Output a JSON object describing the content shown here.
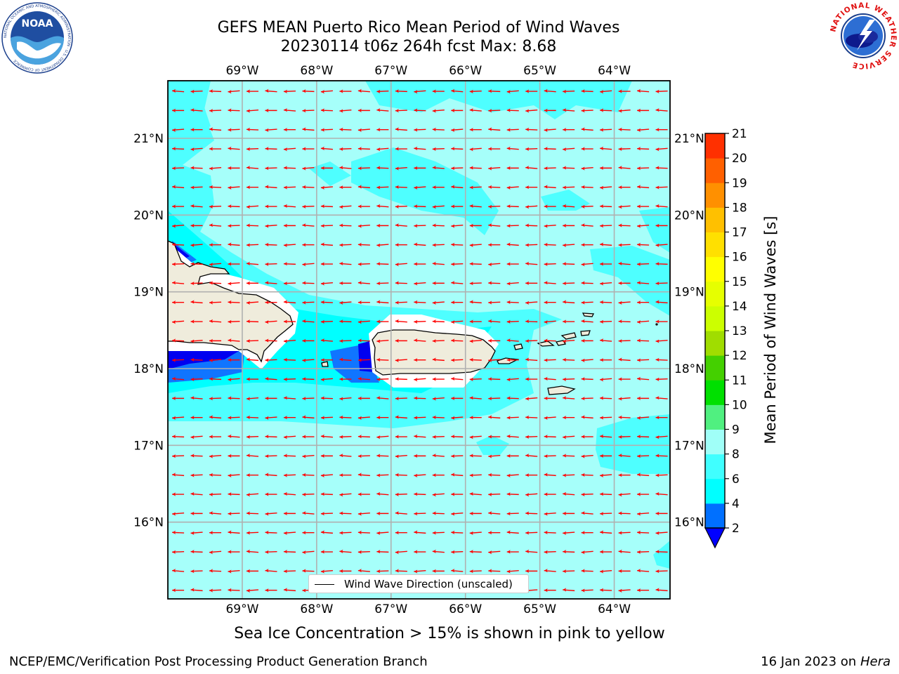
{
  "title": {
    "line1": "GEFS MEAN Puerto Rico Mean Period of Wind Waves",
    "line2": "20230114 t06z 264h fcst   Max: 8.68"
  },
  "logos": {
    "left": "NOAA",
    "left_ring": "NATIONAL OCEANIC AND ATMOSPHERIC ADMINISTRATION · U.S. DEPARTMENT OF COMMERCE",
    "right_ring": "NATIONAL WEATHER SERVICE"
  },
  "map": {
    "region": "Puerto Rico",
    "lon_range": [
      -70,
      -63.25
    ],
    "lat_range": [
      15,
      21.75
    ],
    "lon_ticks": [
      "69°W",
      "68°W",
      "67°W",
      "66°W",
      "65°W",
      "64°W"
    ],
    "lat_ticks": [
      "21°N",
      "20°N",
      "19°N",
      "18°N",
      "17°N",
      "16°N"
    ],
    "land_color": "#efecdc",
    "arrow_color": "#ff0000",
    "grid": true,
    "arrow_direction": "westward"
  },
  "colorbar": {
    "label": "Mean Period of Wind Waves [s]",
    "ticks": [
      "2",
      "4",
      "6",
      "8",
      "9",
      "10",
      "11",
      "12",
      "13",
      "14",
      "15",
      "16",
      "17",
      "18",
      "19",
      "20",
      "21"
    ],
    "colors": [
      "#0070ff",
      "#00ffff",
      "#40ffff",
      "#a0fff8",
      "#50f080",
      "#00e000",
      "#44d000",
      "#a0dd00",
      "#ccff00",
      "#e6ff00",
      "#ffff00",
      "#ffe000",
      "#ffc000",
      "#ff9000",
      "#ff6000",
      "#ff3000",
      "#ff0000"
    ],
    "underflow_color": "#0000ff"
  },
  "legend": {
    "label": "Wind Wave Direction (unscaled)"
  },
  "subtitle": "Sea Ice Concentration > 15% is shown in pink to yellow",
  "footer": {
    "left": "NCEP/EMC/Verification Post Processing Product Generation Branch",
    "right_prefix": "16 Jan 2023 on",
    "right_machine": "Hera"
  }
}
